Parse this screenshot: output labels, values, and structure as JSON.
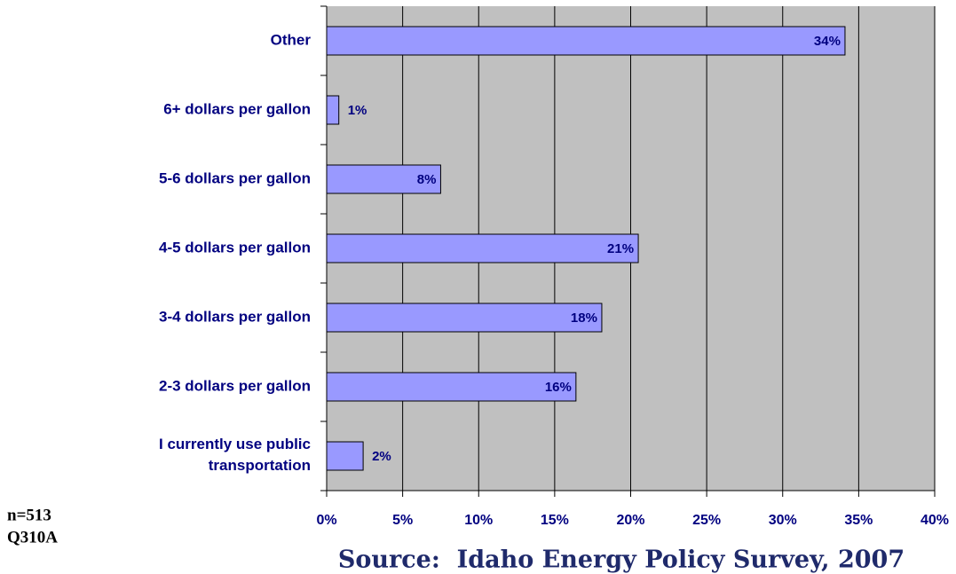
{
  "chart_data": {
    "type": "bar",
    "orientation": "horizontal",
    "categories": [
      "Other",
      "6+ dollars per gallon",
      "5-6 dollars per gallon",
      "4-5 dollars per gallon",
      "3-4 dollars per gallon",
      "2-3 dollars per gallon",
      "I currently use public\ntransportation"
    ],
    "values": [
      34.1,
      0.8,
      7.5,
      20.5,
      18.1,
      16.4,
      2.4
    ],
    "value_labels": [
      "34%",
      "1%",
      "8%",
      "21%",
      "18%",
      "16%",
      "2%"
    ],
    "color": "#9999ff",
    "background": "#c0c0c0",
    "xlim": [
      0,
      40
    ],
    "xticks": [
      {
        "value": 0,
        "label": "0%"
      },
      {
        "value": 5,
        "label": "5%"
      },
      {
        "value": 10,
        "label": "10%"
      },
      {
        "value": 15,
        "label": "15%"
      },
      {
        "value": 20,
        "label": "20%"
      },
      {
        "value": 25,
        "label": "25%"
      },
      {
        "value": 30,
        "label": "30%"
      },
      {
        "value": 35,
        "label": "35%"
      },
      {
        "value": 40,
        "label": "40%"
      }
    ],
    "grid": true
  },
  "notes": [
    "n=513",
    "Q310A"
  ],
  "source": "Source:  Idaho Energy Policy Survey, 2007"
}
